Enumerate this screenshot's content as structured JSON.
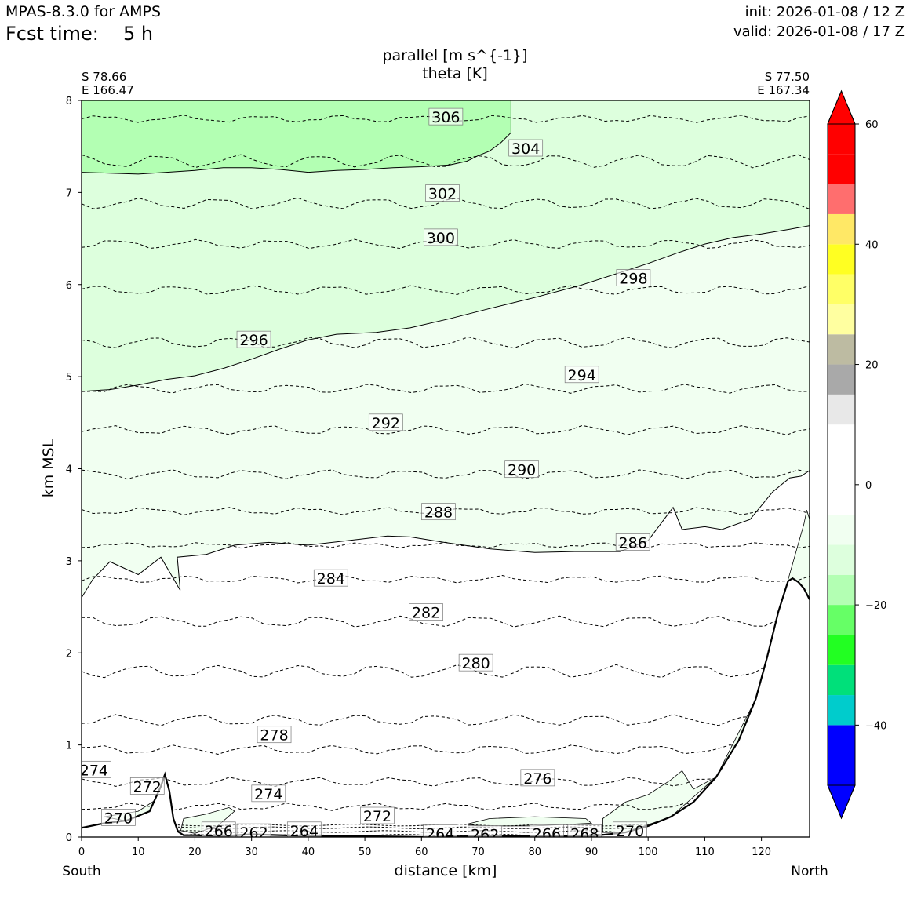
{
  "header": {
    "model": "MPAS-8.3.0 for AMPS",
    "fcst_label": "Fcst time:",
    "fcst_value": "5 h",
    "init": "init: 2026-01-08 / 12 Z",
    "valid": "valid: 2026-01-08 / 17 Z"
  },
  "chart_data": {
    "type": "contour",
    "title_line1": "parallel [m s^{-1}]",
    "title_line2": "theta [K]",
    "start_point": {
      "lat": "S 78.66",
      "lon": "E 166.47"
    },
    "end_point": {
      "lat": "S 77.50",
      "lon": "E 167.34"
    },
    "xlabel": "distance [km]",
    "ylabel": "km MSL",
    "x_end_labels": {
      "left": "South",
      "right": "North"
    },
    "xlim": [
      0,
      128.5
    ],
    "ylim": [
      0,
      8
    ],
    "x_ticks": [
      0,
      10,
      20,
      30,
      40,
      50,
      60,
      70,
      80,
      90,
      100,
      110,
      120
    ],
    "y_ticks": [
      0,
      1,
      2,
      3,
      4,
      5,
      6,
      7,
      8
    ],
    "theta_contour_labels": [
      {
        "value": "306",
        "x": 64.3,
        "y": 7.82
      },
      {
        "value": "304",
        "x": 78.4,
        "y": 7.48
      },
      {
        "value": "302",
        "x": 63.7,
        "y": 6.99
      },
      {
        "value": "300",
        "x": 63.4,
        "y": 6.51
      },
      {
        "value": "298",
        "x": 97.4,
        "y": 6.07
      },
      {
        "value": "296",
        "x": 30.4,
        "y": 5.4
      },
      {
        "value": "294",
        "x": 88.3,
        "y": 5.02
      },
      {
        "value": "292",
        "x": 53.7,
        "y": 4.5
      },
      {
        "value": "290",
        "x": 77.7,
        "y": 3.99
      },
      {
        "value": "288",
        "x": 63.0,
        "y": 3.53
      },
      {
        "value": "286",
        "x": 97.3,
        "y": 3.2
      },
      {
        "value": "284",
        "x": 44.0,
        "y": 2.81
      },
      {
        "value": "282",
        "x": 60.8,
        "y": 2.44
      },
      {
        "value": "280",
        "x": 69.6,
        "y": 1.89
      },
      {
        "value": "278",
        "x": 34.0,
        "y": 1.11
      },
      {
        "value": "276",
        "x": 80.5,
        "y": 0.64
      },
      {
        "value": "274",
        "x": 2.2,
        "y": 0.73
      },
      {
        "value": "272",
        "x": 11.6,
        "y": 0.55
      },
      {
        "value": "274",
        "x": 33.0,
        "y": 0.47
      },
      {
        "value": "272",
        "x": 52.2,
        "y": 0.23
      },
      {
        "value": "270",
        "x": 6.5,
        "y": 0.21
      },
      {
        "value": "266",
        "x": 24.2,
        "y": 0.07
      },
      {
        "value": "262",
        "x": 30.4,
        "y": 0.05
      },
      {
        "value": "264",
        "x": 39.3,
        "y": 0.07
      },
      {
        "value": "264",
        "x": 63.3,
        "y": 0.04
      },
      {
        "value": "262",
        "x": 71.2,
        "y": 0.03
      },
      {
        "value": "266",
        "x": 82.1,
        "y": 0.04
      },
      {
        "value": "268",
        "x": 88.8,
        "y": 0.04
      },
      {
        "value": "270",
        "x": 96.8,
        "y": 0.07
      }
    ],
    "theta_levels": [
      {
        "base": 7.8,
        "amp": 0.03
      },
      {
        "base": 7.34,
        "amp": 0.06
      },
      {
        "base": 6.88,
        "amp": 0.05
      },
      {
        "base": 6.44,
        "amp": 0.04
      },
      {
        "base": 5.94,
        "amp": 0.04
      },
      {
        "base": 5.37,
        "amp": 0.05
      },
      {
        "base": 4.87,
        "amp": 0.04
      },
      {
        "base": 4.42,
        "amp": 0.04
      },
      {
        "base": 3.94,
        "amp": 0.04
      },
      {
        "base": 3.54,
        "amp": 0.03
      },
      {
        "base": 3.17,
        "amp": 0.02
      },
      {
        "base": 2.8,
        "amp": 0.03
      },
      {
        "base": 2.34,
        "amp": 0.05
      },
      {
        "base": 1.8,
        "amp": 0.06
      },
      {
        "base": 1.27,
        "amp": 0.05
      },
      {
        "base": 0.95,
        "amp": 0.04
      },
      {
        "base": 0.6,
        "amp": 0.04
      },
      {
        "base": 0.33,
        "amp": 0.03
      }
    ],
    "parallel_fill": {
      "band_minus10_0_bottom": [
        [
          0,
          2.6
        ],
        [
          2,
          2.8
        ],
        [
          5,
          2.99
        ],
        [
          10,
          2.85
        ],
        [
          14,
          3.04
        ],
        [
          17.4,
          2.68
        ],
        [
          16.9,
          3.04
        ],
        [
          22,
          3.07
        ],
        [
          27,
          3.17
        ],
        [
          33,
          3.2
        ],
        [
          40,
          3.17
        ],
        [
          47,
          3.22
        ],
        [
          54,
          3.27
        ],
        [
          58,
          3.26
        ],
        [
          64,
          3.2
        ],
        [
          72,
          3.13
        ],
        [
          80,
          3.09
        ],
        [
          87,
          3.1
        ],
        [
          95,
          3.1
        ],
        [
          100,
          3.22
        ],
        [
          104.4,
          3.58
        ],
        [
          106,
          3.34
        ],
        [
          110,
          3.37
        ],
        [
          113,
          3.34
        ],
        [
          118,
          3.45
        ],
        [
          122,
          3.75
        ],
        [
          125,
          3.9
        ],
        [
          127,
          3.92
        ],
        [
          128.5,
          3.98
        ]
      ],
      "band_minus20_minus10_bottom": [
        [
          0,
          4.84
        ],
        [
          5,
          4.86
        ],
        [
          10,
          4.91
        ],
        [
          15,
          4.97
        ],
        [
          20,
          5.01
        ],
        [
          25,
          5.09
        ],
        [
          30,
          5.19
        ],
        [
          35,
          5.3
        ],
        [
          40,
          5.4
        ],
        [
          45,
          5.46
        ],
        [
          52,
          5.48
        ],
        [
          58,
          5.53
        ],
        [
          65,
          5.63
        ],
        [
          72,
          5.74
        ],
        [
          80,
          5.86
        ],
        [
          88,
          5.99
        ],
        [
          95,
          6.13
        ],
        [
          100,
          6.23
        ],
        [
          105,
          6.34
        ],
        [
          110,
          6.44
        ],
        [
          115,
          6.51
        ],
        [
          120,
          6.55
        ],
        [
          125,
          6.6
        ],
        [
          128.5,
          6.64
        ]
      ],
      "band_minus30_minus20_bottom": [
        [
          0,
          7.22
        ],
        [
          5,
          7.21
        ],
        [
          10,
          7.2
        ],
        [
          15,
          7.22
        ],
        [
          20,
          7.24
        ],
        [
          25,
          7.27
        ],
        [
          30,
          7.27
        ],
        [
          35,
          7.25
        ],
        [
          40,
          7.22
        ],
        [
          45,
          7.24
        ],
        [
          50,
          7.25
        ],
        [
          55,
          7.27
        ],
        [
          60,
          7.28
        ],
        [
          65,
          7.3
        ],
        [
          68,
          7.34
        ],
        [
          70,
          7.4
        ],
        [
          72,
          7.45
        ],
        [
          74,
          7.54
        ],
        [
          75.8,
          7.65
        ],
        [
          75.8,
          8.0
        ]
      ]
    },
    "terrain": [
      [
        0,
        0.1
      ],
      [
        4,
        0.15
      ],
      [
        8,
        0.18
      ],
      [
        12,
        0.28
      ],
      [
        14,
        0.55
      ],
      [
        14.7,
        0.68
      ],
      [
        15.5,
        0.5
      ],
      [
        16.2,
        0.2
      ],
      [
        17,
        0.06
      ],
      [
        18,
        0.02
      ],
      [
        20,
        0.02
      ],
      [
        25,
        0.01
      ],
      [
        30,
        0.03
      ],
      [
        40,
        0.01
      ],
      [
        50,
        0.01
      ],
      [
        60,
        0.0
      ],
      [
        70,
        0.01
      ],
      [
        80,
        0.01
      ],
      [
        90,
        0.01
      ],
      [
        96,
        0.05
      ],
      [
        100,
        0.12
      ],
      [
        104,
        0.22
      ],
      [
        108,
        0.38
      ],
      [
        112,
        0.65
      ],
      [
        116,
        1.05
      ],
      [
        119,
        1.5
      ],
      [
        121,
        1.95
      ],
      [
        123,
        2.45
      ],
      [
        124.7,
        2.78
      ],
      [
        125.5,
        2.81
      ],
      [
        126.5,
        2.77
      ],
      [
        127.5,
        2.7
      ],
      [
        128.5,
        2.58
      ]
    ],
    "colorbar": {
      "tick_labels": [
        "60",
        "40",
        "20",
        "0",
        "−20",
        "−40"
      ],
      "tick_values": [
        60,
        40,
        20,
        0,
        -20,
        -40
      ],
      "range": [
        -50,
        60
      ],
      "over_color": "#ff0000",
      "under_color": "#0000ff",
      "bins": [
        {
          "from": -50,
          "to": -45,
          "color": "#0000ff"
        },
        {
          "from": -45,
          "to": -40,
          "color": "#0000ff"
        },
        {
          "from": -40,
          "to": -35,
          "color": "#00cccc"
        },
        {
          "from": -35,
          "to": -30,
          "color": "#00e07a"
        },
        {
          "from": -30,
          "to": -25,
          "color": "#22ff22"
        },
        {
          "from": -25,
          "to": -20,
          "color": "#66ff66"
        },
        {
          "from": -20,
          "to": -15,
          "color": "#b3ffb3"
        },
        {
          "from": -15,
          "to": -10,
          "color": "#ddffdd"
        },
        {
          "from": -10,
          "to": -5,
          "color": "#f1fff1"
        },
        {
          "from": -5,
          "to": 0,
          "color": "#ffffff"
        },
        {
          "from": 0,
          "to": 5,
          "color": "#ffffff"
        },
        {
          "from": 5,
          "to": 10,
          "color": "#ffffff"
        },
        {
          "from": 10,
          "to": 15,
          "color": "#e8e8e8"
        },
        {
          "from": 15,
          "to": 20,
          "color": "#a9a9a9"
        },
        {
          "from": 20,
          "to": 25,
          "color": "#bdbba2"
        },
        {
          "from": 25,
          "to": 30,
          "color": "#ffffa0"
        },
        {
          "from": 30,
          "to": 35,
          "color": "#ffff66"
        },
        {
          "from": 35,
          "to": 40,
          "color": "#ffff22"
        },
        {
          "from": 40,
          "to": 45,
          "color": "#ffe866"
        },
        {
          "from": 45,
          "to": 50,
          "color": "#ff6e6e"
        },
        {
          "from": 50,
          "to": 55,
          "color": "#ff0000"
        },
        {
          "from": 55,
          "to": 60,
          "color": "#ff0000"
        }
      ]
    }
  }
}
